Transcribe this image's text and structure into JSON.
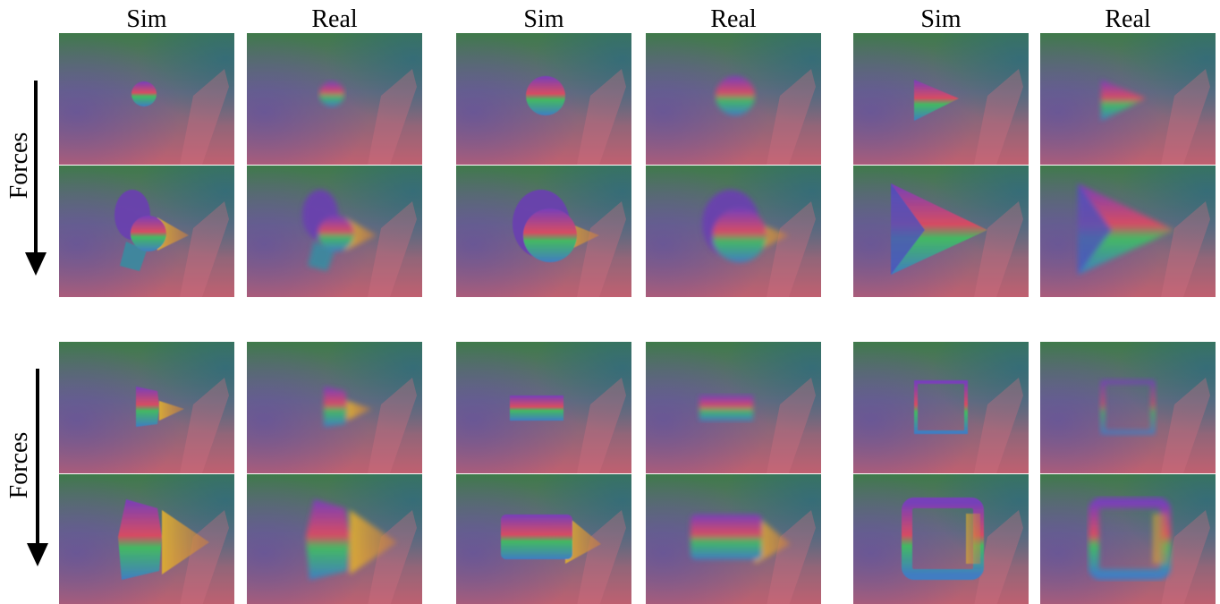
{
  "column_headers": [
    "Sim",
    "Real",
    "Sim",
    "Real",
    "Sim",
    "Real"
  ],
  "row_labels": [
    "Forces",
    "Forces"
  ]
}
